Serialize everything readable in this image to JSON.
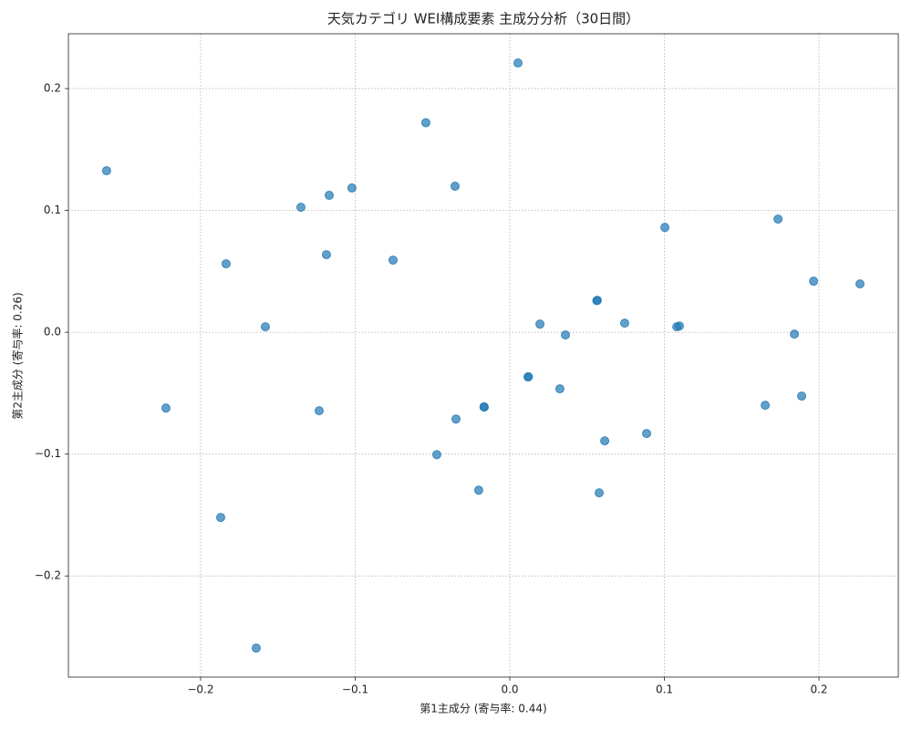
{
  "chart_data": {
    "type": "scatter",
    "title": "天気カテゴリ WEI構成要素 主成分分析（30日間）",
    "x_label": "第1主成分 (寄与率: 0.44)",
    "y_label": "第2主成分 (寄与率: 0.26)",
    "color": "#1f77b4",
    "grid": true,
    "xlim": [
      -0.2855,
      0.2513
    ],
    "ylim": [
      -0.283,
      0.245
    ],
    "xticks": [
      {
        "value": -0.2,
        "label": "−0.2"
      },
      {
        "value": -0.1,
        "label": "−0.1"
      },
      {
        "value": 0,
        "label": "0.0"
      },
      0.1,
      0.2
    ],
    "yticks": [
      {
        "value": -0.2,
        "label": "−0.2"
      },
      {
        "value": -0.1,
        "label": "−0.1"
      },
      {
        "value": 0,
        "label": "0.0"
      },
      0.1,
      0.2
    ],
    "x": [
      0.0053,
      -0.0543,
      -0.2608,
      -0.0354,
      -0.1021,
      -0.1168,
      -0.1351,
      0.1735,
      0.1003,
      -0.1186,
      -0.0755,
      -0.1835,
      0.1965,
      0.2265,
      0.0566,
      0.0563,
      0.0195,
      0.0743,
      -0.1581,
      0.108,
      0.1097,
      0.036,
      0.1841,
      0.0118,
      0.012,
      0.0324,
      -0.2224,
      -0.1233,
      -0.0165,
      -0.0167,
      0.1652,
      0.1888,
      -0.0348,
      0.0885,
      0.0614,
      -0.0472,
      -0.0201,
      0.0578,
      -0.187,
      -0.164
    ],
    "y": [
      0.221,
      0.172,
      0.1326,
      0.1199,
      0.1184,
      0.1124,
      0.1026,
      0.0929,
      0.0861,
      0.0637,
      0.0592,
      0.0562,
      0.0419,
      0.0397,
      0.0262,
      0.026,
      0.0067,
      0.0075,
      0.0045,
      0.0045,
      0.0052,
      -0.0022,
      -0.0015,
      -0.0367,
      -0.0365,
      -0.0464,
      -0.0622,
      -0.0644,
      -0.0614,
      -0.0612,
      -0.0599,
      -0.0524,
      -0.0712,
      -0.0831,
      -0.0891,
      -0.1004,
      -0.1296,
      -0.1318,
      -0.152,
      -0.2592
    ]
  }
}
